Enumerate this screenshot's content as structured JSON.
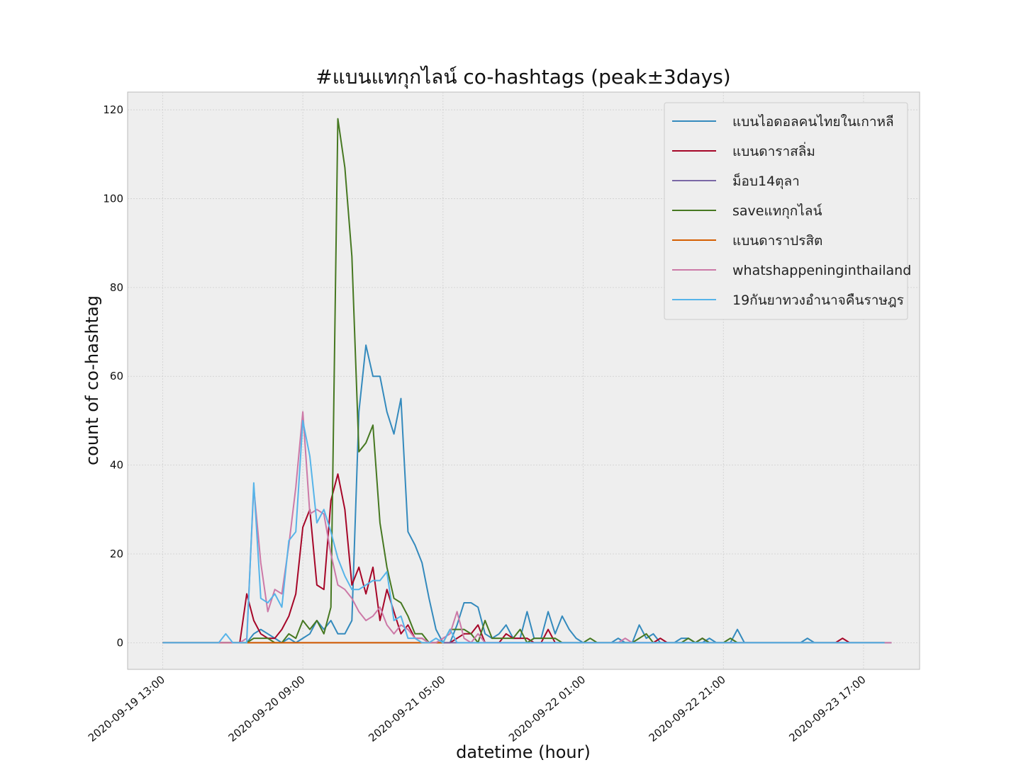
{
  "chart_data": {
    "type": "line",
    "title": "#แบนแทกุกไลน์ co-hashtags (peak±3days)",
    "xlabel": "datetime (hour)",
    "ylabel": "count of co-hashtag",
    "x_start": "2020-09-19 13:00",
    "x_step_hours": 1,
    "xticks": [
      "2020-09-19 13:00",
      "2020-09-20 09:00",
      "2020-09-21 05:00",
      "2020-09-22 01:00",
      "2020-09-22 21:00",
      "2020-09-23 17:00"
    ],
    "yticks": [
      "0",
      "20",
      "40",
      "60",
      "80",
      "100",
      "120"
    ],
    "xlim_hours": [
      -5,
      108
    ],
    "ylim": [
      -6,
      124
    ],
    "grid": true,
    "legend_position": "top-right",
    "series": [
      {
        "name": "แบนไอดอลคนไทยในเกาหลี",
        "color": "#348ABD",
        "values": [
          0,
          0,
          0,
          0,
          0,
          0,
          0,
          0,
          0,
          0,
          0,
          0,
          0,
          2,
          3,
          2,
          1,
          0,
          1,
          0,
          1,
          2,
          5,
          3,
          5,
          2,
          2,
          5,
          52,
          67,
          60,
          60,
          52,
          47,
          55,
          25,
          22,
          18,
          10,
          3,
          0,
          0,
          4,
          9,
          9,
          8,
          2,
          1,
          2,
          4,
          1,
          1,
          7,
          1,
          1,
          7,
          2,
          6,
          3,
          1,
          0,
          0,
          0,
          0,
          0,
          1,
          0,
          0,
          4,
          1,
          2,
          0,
          0,
          0,
          1,
          1,
          0,
          0,
          1,
          0,
          0,
          0,
          3,
          0,
          0,
          0,
          0,
          0,
          0,
          0,
          0,
          0,
          1,
          0,
          0,
          0,
          0,
          0,
          0,
          0,
          0,
          0,
          0,
          0,
          0
        ]
      },
      {
        "name": "แบนดาราสลิ่ม",
        "color": "#A60628",
        "values": [
          0,
          0,
          0,
          0,
          0,
          0,
          0,
          0,
          0,
          0,
          0,
          0,
          11,
          5,
          2,
          1,
          1,
          3,
          6,
          11,
          26,
          30,
          13,
          12,
          32,
          38,
          30,
          13,
          17,
          11,
          17,
          5,
          12,
          7,
          2,
          4,
          1,
          1,
          0,
          0,
          0,
          0,
          1,
          2,
          2,
          4,
          0,
          0,
          0,
          2,
          1,
          1,
          1,
          0,
          0,
          3,
          0,
          0,
          0,
          0,
          0,
          0,
          0,
          0,
          0,
          0,
          0,
          0,
          0,
          0,
          0,
          1,
          0,
          0,
          0,
          0,
          0,
          1,
          0,
          0,
          0,
          0,
          0,
          0,
          0,
          0,
          0,
          0,
          0,
          0,
          0,
          0,
          0,
          0,
          0,
          0,
          0,
          1,
          0,
          0,
          0,
          0,
          0,
          0
        ]
      },
      {
        "name": "ม็อบ14ตุลา",
        "color": "#7A68A6",
        "values": [
          0,
          0,
          0,
          0,
          0,
          0,
          0,
          0,
          0,
          0,
          0,
          0,
          0,
          0,
          0,
          0,
          0,
          0,
          0,
          0,
          0,
          0,
          0,
          0,
          0,
          0,
          0,
          0,
          0,
          0,
          0,
          0,
          0,
          0,
          0,
          0,
          0,
          0,
          0,
          0,
          0,
          0,
          0,
          0,
          0,
          0,
          0,
          0,
          0,
          0,
          0,
          0,
          0,
          0,
          0,
          0,
          0,
          0,
          0,
          0,
          0,
          0,
          0,
          0,
          0,
          0,
          0,
          0,
          0,
          0,
          0,
          0,
          0,
          0,
          0,
          0,
          0,
          0,
          0,
          0,
          0,
          0,
          0,
          0,
          0,
          0,
          0,
          0,
          0,
          0,
          0,
          0,
          0,
          0,
          0,
          0,
          0,
          0,
          0,
          0,
          0,
          0,
          0,
          0
        ]
      },
      {
        "name": "saveแทกุกไลน์",
        "color": "#467821",
        "values": [
          0,
          0,
          0,
          0,
          0,
          0,
          0,
          0,
          0,
          0,
          0,
          0,
          0,
          1,
          1,
          1,
          0,
          0,
          2,
          1,
          5,
          3,
          5,
          2,
          8,
          118,
          107,
          87,
          43,
          45,
          49,
          27,
          17,
          10,
          9,
          6,
          2,
          2,
          0,
          0,
          0,
          3,
          3,
          3,
          2,
          0,
          5,
          1,
          1,
          1,
          1,
          3,
          0,
          1,
          1,
          1,
          1,
          0,
          0,
          0,
          0,
          1,
          0,
          0,
          0,
          0,
          0,
          0,
          1,
          2,
          0,
          0,
          0,
          0,
          0,
          1,
          0,
          1,
          0,
          0,
          0,
          1,
          0,
          0,
          0,
          0,
          0,
          0,
          0,
          0,
          0,
          0,
          0,
          0,
          0,
          0,
          0,
          0,
          0,
          0,
          0,
          0,
          0,
          0
        ]
      },
      {
        "name": "แบนดาราปรสิต",
        "color": "#D55E00",
        "values": [
          0,
          0,
          0,
          0,
          0,
          0,
          0,
          0,
          0,
          0,
          0,
          0,
          0,
          0,
          0,
          0,
          0,
          0,
          0,
          0,
          0,
          0,
          0,
          0,
          0,
          0,
          0,
          0,
          0,
          0,
          0,
          0,
          0,
          0,
          0,
          0,
          0,
          0,
          0,
          0,
          0
        ]
      },
      {
        "name": "whatshappeninginthailand",
        "color": "#CC79A7",
        "values": [
          0,
          0,
          0,
          0,
          0,
          0,
          0,
          0,
          0,
          0,
          0,
          0,
          1,
          35,
          18,
          7,
          12,
          11,
          22,
          35,
          52,
          29,
          30,
          29,
          20,
          13,
          12,
          10,
          7,
          5,
          6,
          8,
          4,
          2,
          4,
          3,
          1,
          1,
          0,
          0,
          1,
          2,
          7,
          1,
          0,
          2,
          0,
          0,
          0,
          0,
          0,
          0,
          0,
          0,
          0,
          0,
          0,
          0,
          0,
          0,
          0,
          0,
          0,
          0,
          0,
          0,
          1,
          0,
          0,
          0,
          0,
          0,
          0,
          0,
          0,
          0,
          0,
          0,
          0,
          0,
          0,
          0,
          0,
          0,
          0,
          0,
          0,
          0,
          0,
          0,
          0,
          0,
          0,
          0,
          0,
          0,
          0,
          0,
          0,
          0,
          0,
          0,
          0,
          0,
          0
        ]
      },
      {
        "name": "19กันยาทวงอำนาจคืนราษฎร",
        "color": "#56B4E9",
        "values": [
          0,
          0,
          0,
          0,
          0,
          0,
          0,
          0,
          0,
          2,
          0,
          0,
          0,
          36,
          10,
          9,
          11,
          8,
          23,
          25,
          50,
          42,
          27,
          30,
          25,
          19,
          15,
          12,
          12,
          13,
          14,
          14,
          16,
          5,
          6,
          1,
          1,
          0,
          0,
          1,
          0,
          3,
          0,
          0,
          0,
          0,
          0,
          0,
          0,
          0,
          0,
          0,
          0,
          0,
          0,
          0,
          0,
          0,
          0,
          0,
          0,
          0,
          0,
          0,
          0,
          0,
          0,
          0,
          0,
          0,
          0,
          0,
          0,
          0,
          0,
          0,
          0,
          0,
          0,
          0,
          0,
          0,
          0,
          0,
          0,
          0,
          0,
          0,
          0,
          0,
          0,
          0,
          0,
          0,
          0,
          0,
          0,
          0,
          0,
          0,
          0,
          0,
          0,
          0
        ]
      }
    ]
  }
}
